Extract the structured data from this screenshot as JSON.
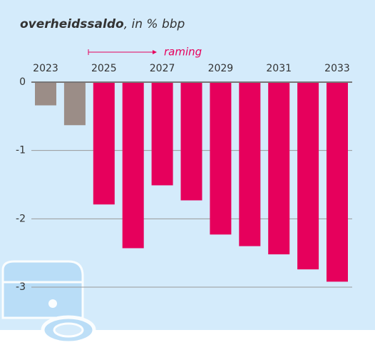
{
  "chart_data": {
    "type": "bar",
    "title": "overheidssaldo",
    "subtitle": ", in % bbp",
    "annotation": "raming",
    "categories": [
      "2023",
      null,
      "2025",
      null,
      "2027",
      null,
      "2029",
      null,
      "2031",
      null,
      "2033"
    ],
    "values": [
      -0.34,
      -0.63,
      -1.79,
      -2.43,
      -1.51,
      -1.73,
      -2.23,
      -2.4,
      -2.52,
      -2.74,
      -2.92
    ],
    "colors": [
      "#9b8d87",
      "#9b8d87",
      "#e6005c",
      "#e6005c",
      "#e6005c",
      "#e6005c",
      "#e6005c",
      "#e6005c",
      "#e6005c",
      "#e6005c",
      "#e6005c"
    ],
    "ylim": [
      -3,
      0
    ],
    "yticks": [
      0,
      -1,
      -2,
      -3
    ],
    "grid": true
  }
}
